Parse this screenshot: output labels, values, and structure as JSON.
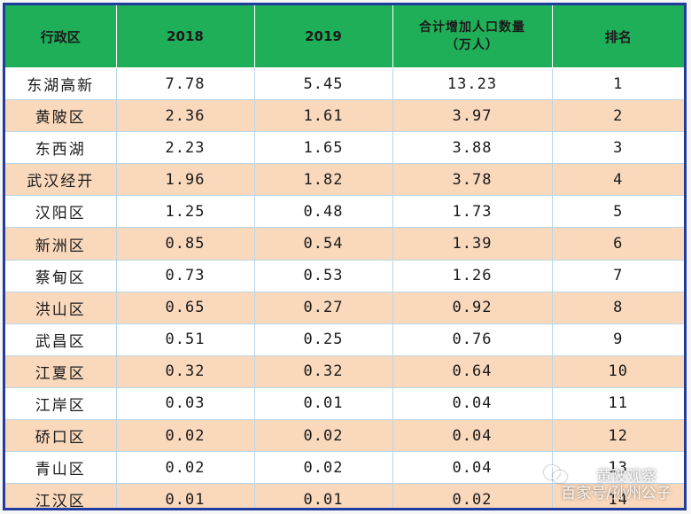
{
  "chart_data": {
    "type": "table",
    "columns": [
      "行政区",
      "2018",
      "2019",
      "合计增加人口数量",
      "（万人）",
      "排名"
    ],
    "rows": [
      {
        "district": "东湖高新",
        "y2018": "7.78",
        "y2019": "5.45",
        "total": "13.23",
        "rank": "1"
      },
      {
        "district": "黄陂区",
        "y2018": "2.36",
        "y2019": "1.61",
        "total": "3.97",
        "rank": "2"
      },
      {
        "district": "东西湖",
        "y2018": "2.23",
        "y2019": "1.65",
        "total": "3.88",
        "rank": "3"
      },
      {
        "district": "武汉经开",
        "y2018": "1.96",
        "y2019": "1.82",
        "total": "3.78",
        "rank": "4"
      },
      {
        "district": "汉阳区",
        "y2018": "1.25",
        "y2019": "0.48",
        "total": "1.73",
        "rank": "5"
      },
      {
        "district": "新洲区",
        "y2018": "0.85",
        "y2019": "0.54",
        "total": "1.39",
        "rank": "6"
      },
      {
        "district": "蔡甸区",
        "y2018": "0.73",
        "y2019": "0.53",
        "total": "1.26",
        "rank": "7"
      },
      {
        "district": "洪山区",
        "y2018": "0.65",
        "y2019": "0.27",
        "total": "0.92",
        "rank": "8"
      },
      {
        "district": "武昌区",
        "y2018": "0.51",
        "y2019": "0.25",
        "total": "0.76",
        "rank": "9"
      },
      {
        "district": "江夏区",
        "y2018": "0.32",
        "y2019": "0.32",
        "total": "0.64",
        "rank": "10"
      },
      {
        "district": "江岸区",
        "y2018": "0.03",
        "y2019": "0.01",
        "total": "0.04",
        "rank": "11"
      },
      {
        "district": "硚口区",
        "y2018": "0.02",
        "y2019": "0.02",
        "total": "0.04",
        "rank": "12"
      },
      {
        "district": "青山区",
        "y2018": "0.02",
        "y2019": "0.02",
        "total": "0.04",
        "rank": "13"
      },
      {
        "district": "江汉区",
        "y2018": "0.01",
        "y2019": "0.01",
        "total": "0.02",
        "rank": "14"
      }
    ]
  },
  "colors": {
    "header_bg": "#1faf58",
    "row_alt": "#f9d8bc",
    "frame_border": "#1f3c9e"
  },
  "watermark": {
    "line1": "黄陂观察",
    "line2": "百家号/孙州公子",
    "icon": "wechat-icon"
  }
}
